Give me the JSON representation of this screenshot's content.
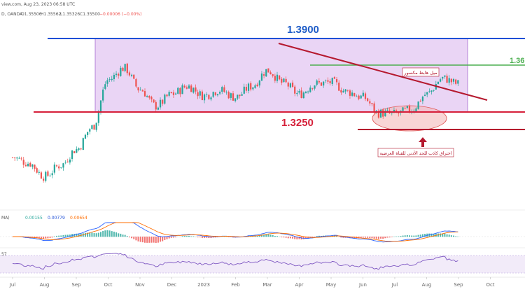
{
  "header": {
    "top_line": "view.com, Aug 23, 2023 06:58 UTC",
    "symbol_line": "D, OANDA",
    "ohlc": [
      {
        "label": "O",
        "value": "1.35506"
      },
      {
        "label": "H",
        "value": "1.35562"
      },
      {
        "label": "L",
        "value": "1.35326"
      },
      {
        "label": "C",
        "value": "1.35500"
      },
      {
        "label": "",
        "value": "−0.00006 (−0.00%)"
      }
    ]
  },
  "annotations": {
    "level_upper": "1.3900",
    "level_lower": "1.3250",
    "level_right": "1.36",
    "trendline_label": "ميل هابط مكسور",
    "breakout_label": "اختراق كاذب للحد الأدنى للقناة العرضية"
  },
  "macd": {
    "label": "MA)",
    "values": [
      "0.00155",
      "0.00779",
      "0.00654"
    ]
  },
  "rsi": {
    "label": "57"
  },
  "colors": {
    "up": "#26a69a",
    "down": "#ef5350",
    "channel_fill": "#d8b3ec",
    "blue_line": "#1e4fd6",
    "red_line": "#d6203a",
    "green_line": "#4caf50",
    "trend_line": "#b5182e",
    "label_blue": "#1e5cc7",
    "label_red": "#d6203a"
  },
  "chart_data": {
    "type": "candlestick",
    "x_ticks": [
      "Jul",
      "Aug",
      "Sep",
      "Oct",
      "Nov",
      "Dec",
      "2023",
      "Feb",
      "Mar",
      "Apr",
      "May",
      "Jun",
      "Jul",
      "Aug",
      "Sep",
      "Oct"
    ],
    "price_ylim": [
      1.2,
      1.43
    ],
    "horizontal_levels": [
      1.39,
      1.325,
      1.36
    ],
    "series": [
      {
        "name": "close",
        "months": [
          0,
          0.5,
          1,
          1.5,
          2,
          2.5,
          3,
          3.5,
          4,
          4.5,
          5,
          5.5,
          6,
          6.5,
          7,
          7.5,
          8,
          8.5,
          9,
          9.5,
          10,
          10.5,
          11,
          11.5,
          12,
          12.5,
          13,
          13.5,
          14
        ],
        "values": [
          1.262,
          1.255,
          1.238,
          1.252,
          1.272,
          1.3,
          1.36,
          1.375,
          1.348,
          1.327,
          1.342,
          1.352,
          1.34,
          1.347,
          1.338,
          1.352,
          1.372,
          1.356,
          1.342,
          1.355,
          1.357,
          1.345,
          1.338,
          1.318,
          1.317,
          1.322,
          1.342,
          1.362,
          1.355
        ]
      }
    ]
  }
}
